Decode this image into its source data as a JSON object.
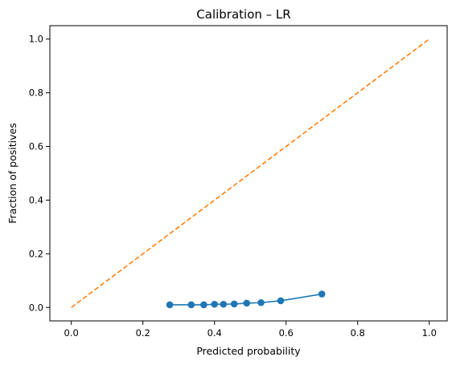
{
  "chart_data": {
    "type": "line",
    "title": "Calibration – LR",
    "xlabel": "Predicted probability",
    "ylabel": "Fraction of positives",
    "xlim": [
      -0.06,
      1.05
    ],
    "ylim": [
      -0.05,
      1.05
    ],
    "x_ticks": [
      "0.0",
      "0.2",
      "0.4",
      "0.6",
      "0.8",
      "1.0"
    ],
    "y_ticks": [
      "0.0",
      "0.2",
      "0.4",
      "0.6",
      "0.8",
      "1.0"
    ],
    "grid": false,
    "series": [
      {
        "color": "#1f77b4",
        "style": "solid",
        "marker": "circle",
        "x": [
          0.275,
          0.335,
          0.37,
          0.4,
          0.425,
          0.455,
          0.49,
          0.53,
          0.585,
          0.7
        ],
        "y": [
          0.01,
          0.01,
          0.01,
          0.012,
          0.012,
          0.013,
          0.016,
          0.018,
          0.025,
          0.05
        ]
      },
      {
        "color": "#ff7f0e",
        "style": "dashed",
        "marker": "none",
        "x": [
          0.0,
          1.0
        ],
        "y": [
          0.0,
          1.0
        ]
      }
    ]
  }
}
